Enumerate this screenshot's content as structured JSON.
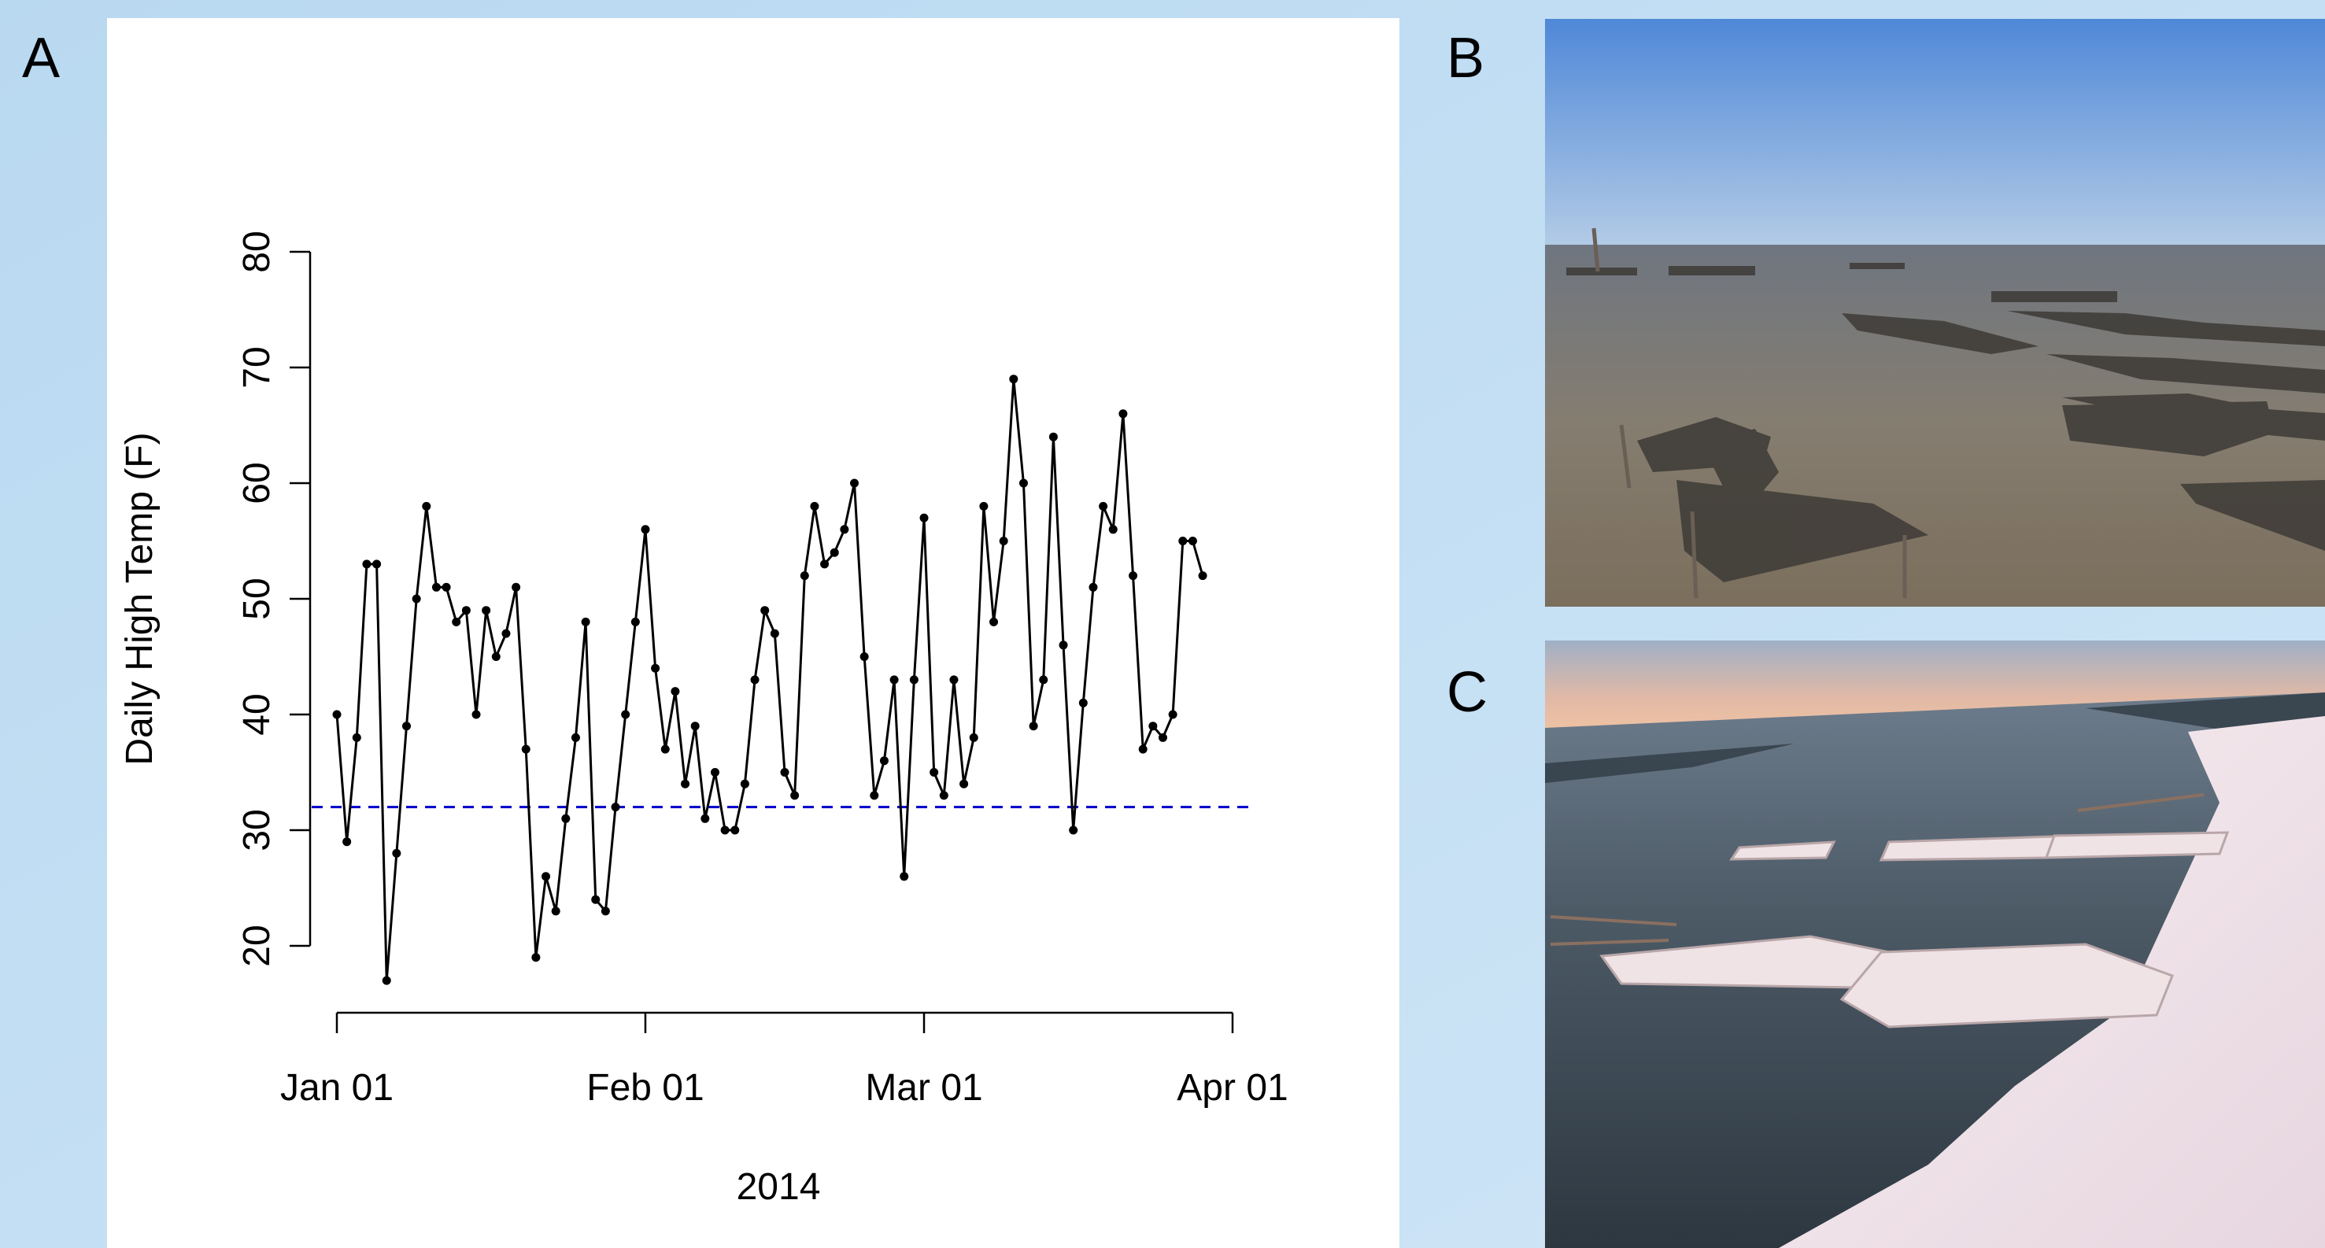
{
  "panel_labels": [
    "A",
    "B",
    "C"
  ],
  "chart_data": {
    "type": "line",
    "x_label": "2014",
    "y_label": "Daily High Temp (F)",
    "x": [
      "2014-01-01",
      "2014-01-02",
      "2014-01-03",
      "2014-01-04",
      "2014-01-05",
      "2014-01-06",
      "2014-01-07",
      "2014-01-08",
      "2014-01-09",
      "2014-01-10",
      "2014-01-11",
      "2014-01-12",
      "2014-01-13",
      "2014-01-14",
      "2014-01-15",
      "2014-01-16",
      "2014-01-17",
      "2014-01-18",
      "2014-01-19",
      "2014-01-20",
      "2014-01-21",
      "2014-01-22",
      "2014-01-23",
      "2014-01-24",
      "2014-01-25",
      "2014-01-26",
      "2014-01-27",
      "2014-01-28",
      "2014-01-29",
      "2014-01-30",
      "2014-01-31",
      "2014-02-01",
      "2014-02-02",
      "2014-02-03",
      "2014-02-04",
      "2014-02-05",
      "2014-02-06",
      "2014-02-07",
      "2014-02-08",
      "2014-02-09",
      "2014-02-10",
      "2014-02-11",
      "2014-02-12",
      "2014-02-13",
      "2014-02-14",
      "2014-02-15",
      "2014-02-16",
      "2014-02-17",
      "2014-02-18",
      "2014-02-19",
      "2014-02-20",
      "2014-02-21",
      "2014-02-22",
      "2014-02-23",
      "2014-02-24",
      "2014-02-25",
      "2014-02-26",
      "2014-02-27",
      "2014-02-28",
      "2014-03-01",
      "2014-03-02",
      "2014-03-03",
      "2014-03-04",
      "2014-03-05",
      "2014-03-06",
      "2014-03-07",
      "2014-03-08",
      "2014-03-09",
      "2014-03-10",
      "2014-03-11",
      "2014-03-12",
      "2014-03-13",
      "2014-03-14",
      "2014-03-15",
      "2014-03-16",
      "2014-03-17",
      "2014-03-18",
      "2014-03-19",
      "2014-03-20",
      "2014-03-21",
      "2014-03-22",
      "2014-03-23",
      "2014-03-24",
      "2014-03-25",
      "2014-03-26",
      "2014-03-27",
      "2014-03-28",
      "2014-03-29"
    ],
    "values": [
      40,
      29,
      38,
      53,
      53,
      17,
      28,
      39,
      50,
      58,
      51,
      51,
      48,
      49,
      40,
      49,
      45,
      47,
      51,
      37,
      19,
      26,
      23,
      31,
      38,
      48,
      24,
      23,
      32,
      40,
      48,
      56,
      44,
      37,
      42,
      34,
      39,
      31,
      35,
      30,
      30,
      34,
      43,
      49,
      47,
      35,
      33,
      52,
      58,
      53,
      54,
      56,
      60,
      45,
      33,
      36,
      43,
      26,
      43,
      57,
      35,
      33,
      43,
      34,
      38,
      58,
      48,
      55,
      69,
      60,
      39,
      43,
      64,
      46,
      30,
      41,
      51,
      58,
      56,
      66,
      52,
      37,
      39,
      38,
      40,
      55,
      55,
      52
    ],
    "color": "#000000",
    "xlim": [
      "2014-01-01",
      "2014-04-01"
    ],
    "xticks": [
      {
        "value": "2014-01-01",
        "label": "Jan 01"
      },
      {
        "value": "2014-02-01",
        "label": "Feb 01"
      },
      {
        "value": "2014-03-01",
        "label": "Mar 01"
      },
      {
        "value": "2014-04-01",
        "label": "Apr 01"
      }
    ],
    "ylim": [
      20,
      80
    ],
    "yticks": [
      20,
      30,
      40,
      50,
      60,
      70,
      80
    ],
    "reference_line": {
      "value": 32,
      "color": "#0000cc",
      "style": "dashed"
    }
  }
}
